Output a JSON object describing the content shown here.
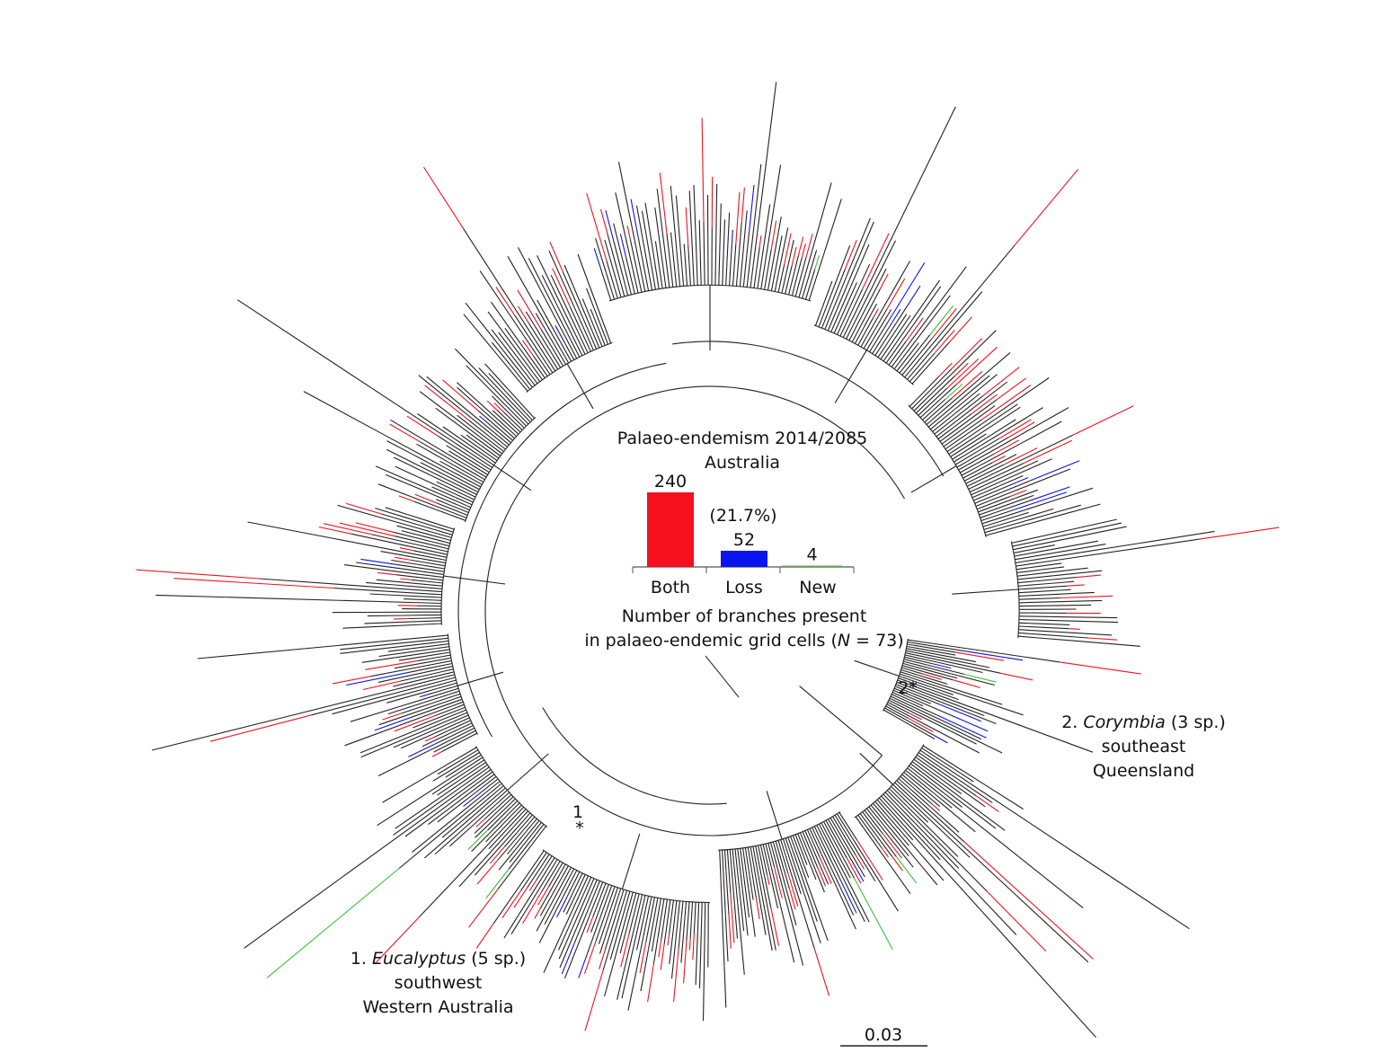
{
  "figure": {
    "colors": {
      "both": "#f5101e",
      "loss": "#0a14ee",
      "new": "#36c236",
      "branch": "#222222"
    },
    "clade_1": {
      "marker": "1",
      "star": "*",
      "number": "1.",
      "genus": "Eucalyptus",
      "count": "(5 sp.)",
      "region_line1": "southwest",
      "region_line2": "Western Australia"
    },
    "clade_2": {
      "marker": "2*",
      "number": "2.",
      "genus": "Corymbia",
      "count": "(3 sp.)",
      "region_line1": "southeast",
      "region_line2": "Queensland"
    },
    "scale_bar": {
      "label": "0.03"
    }
  },
  "chart_data": {
    "type": "bar",
    "title": "Palaeo-endemism 2014/2085",
    "subtitle": "Australia",
    "categories": [
      "Both",
      "Loss",
      "New"
    ],
    "values": [
      240,
      52,
      4
    ],
    "data_labels": [
      "240",
      "52",
      "4"
    ],
    "annotation": "(21.7%)",
    "colors": [
      "#f50f1f",
      "#0a14f0",
      "#6aa84f"
    ],
    "xlabel_line1": "Number of branches present",
    "xlabel_line2_prefix": "in palaeo-endemic grid cells (",
    "xlabel_line2_var": "N",
    "xlabel_line2_suffix": " = 73)",
    "grid": false,
    "legend": "none"
  }
}
